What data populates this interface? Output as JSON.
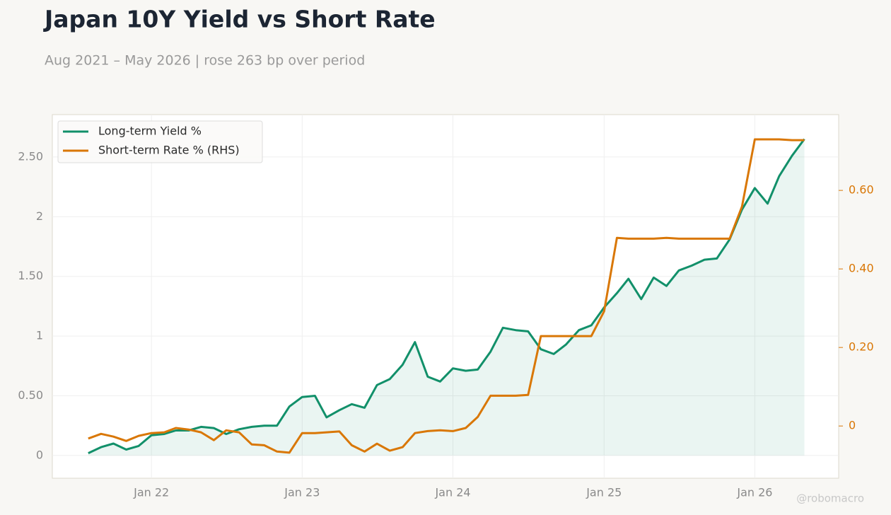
{
  "chart_data": {
    "type": "line",
    "title": "Japan 10Y Yield vs Short Rate",
    "subtitle": "Aug 2021 – May 2026 | rose 263 bp over period",
    "watermark": "@robomacro",
    "x": [
      "2021-08",
      "2021-09",
      "2021-10",
      "2021-11",
      "2021-12",
      "2022-01",
      "2022-02",
      "2022-03",
      "2022-04",
      "2022-05",
      "2022-06",
      "2022-07",
      "2022-08",
      "2022-09",
      "2022-10",
      "2022-11",
      "2022-12",
      "2023-01",
      "2023-02",
      "2023-03",
      "2023-04",
      "2023-05",
      "2023-06",
      "2023-07",
      "2023-08",
      "2023-09",
      "2023-10",
      "2023-11",
      "2023-12",
      "2024-01",
      "2024-02",
      "2024-03",
      "2024-04",
      "2024-05",
      "2024-06",
      "2024-07",
      "2024-08",
      "2024-09",
      "2024-10",
      "2024-11",
      "2024-12",
      "2025-01",
      "2025-02",
      "2025-03",
      "2025-04",
      "2025-05",
      "2025-06",
      "2025-07",
      "2025-08",
      "2025-09",
      "2025-10",
      "2025-11",
      "2025-12",
      "2026-01",
      "2026-02",
      "2026-03",
      "2026-04",
      "2026-05"
    ],
    "series": [
      {
        "name": "Long-term Yield %",
        "color": "#12906a",
        "area": true,
        "values": [
          0.02,
          0.07,
          0.1,
          0.05,
          0.08,
          0.17,
          0.18,
          0.21,
          0.21,
          0.24,
          0.23,
          0.18,
          0.22,
          0.24,
          0.25,
          0.25,
          0.41,
          0.49,
          0.5,
          0.32,
          0.38,
          0.43,
          0.4,
          0.59,
          0.64,
          0.76,
          0.95,
          0.66,
          0.62,
          0.73,
          0.71,
          0.72,
          0.87,
          1.07,
          1.05,
          1.04,
          0.89,
          0.85,
          0.93,
          1.05,
          1.09,
          1.24,
          1.36,
          1.48,
          1.31,
          1.49,
          1.42,
          1.55,
          1.59,
          1.64,
          1.65,
          1.81,
          2.06,
          2.24,
          2.11,
          2.34,
          2.51,
          2.65
        ]
      },
      {
        "name": "Short-term Rate % (RHS)",
        "color": "#d97706",
        "axis": "y2",
        "values": [
          -0.032,
          -0.02,
          -0.027,
          -0.038,
          -0.025,
          -0.018,
          -0.016,
          -0.005,
          -0.009,
          -0.016,
          -0.036,
          -0.011,
          -0.016,
          -0.047,
          -0.049,
          -0.065,
          -0.068,
          -0.018,
          -0.018,
          -0.016,
          -0.014,
          -0.049,
          -0.065,
          -0.045,
          -0.063,
          -0.054,
          -0.018,
          -0.013,
          -0.011,
          -0.013,
          -0.005,
          0.023,
          0.077,
          0.077,
          0.077,
          0.079,
          0.229,
          0.229,
          0.229,
          0.229,
          0.229,
          0.292,
          0.479,
          0.477,
          0.477,
          0.477,
          0.479,
          0.477,
          0.477,
          0.477,
          0.477,
          0.477,
          0.559,
          0.73,
          0.73,
          0.73,
          0.728,
          0.728
        ]
      }
    ],
    "xlim": [
      "2021-05-06",
      "2026-07-23"
    ],
    "xticks": [
      {
        "value": "2022-01",
        "label": "Jan 22"
      },
      {
        "value": "2023-01",
        "label": "Jan 23"
      },
      {
        "value": "2024-01",
        "label": "Jan 24"
      },
      {
        "value": "2025-01",
        "label": "Jan 25"
      },
      {
        "value": "2026-01",
        "label": "Jan 26"
      }
    ],
    "ylim": [
      -0.19,
      2.855
    ],
    "yticks": [
      0,
      {
        "value": 0.5,
        "label": "0.50"
      },
      1,
      {
        "value": 1.5,
        "label": "1.50"
      },
      2,
      {
        "value": 2.5,
        "label": "2.50"
      }
    ],
    "y2lim": [
      -0.133,
      0.793
    ],
    "y2ticks": [
      0,
      {
        "value": 0.2,
        "label": "0.20"
      },
      {
        "value": 0.4,
        "label": "0.40"
      },
      {
        "value": 0.6,
        "label": "0.60"
      }
    ],
    "grid": true,
    "legend": "upper-left"
  }
}
